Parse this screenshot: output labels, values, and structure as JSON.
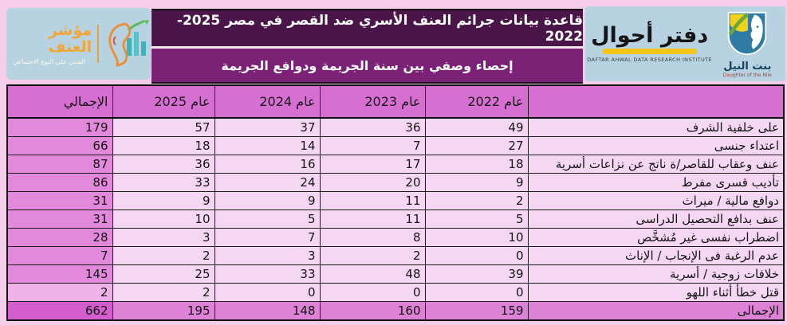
{
  "header": {
    "title": "قاعدة بيانات جرائم العنف الأسري ضد القصر في مصر 2025-2022",
    "subtitle": "إحصاء وصفي بين سنة الجريمة ودوافع الجريمة"
  },
  "logos": {
    "violence_index": {
      "title": "مؤشر العنف",
      "subtitle": "المبني على النوع الاجتماعي"
    },
    "daftar_ahwal": {
      "title": "دفتر أحوال",
      "caption": "DAFTAR AHWAL DATA RESEARCH INSTITUTE"
    },
    "bint_elnil": {
      "title": "بنت النيل",
      "caption": "Daughter of the Nile"
    }
  },
  "colors": {
    "band_dark": "#4a1548",
    "band_purple": "#7b2277",
    "header_row": "#d76fd3",
    "data_cell": "#f6d7f3",
    "total_column": "#e289dc",
    "total_row": "#de82d8",
    "grand_total": "#d45ecd",
    "page_background": "#f6cde8",
    "logo_background": "#b7d3e2"
  },
  "chart_data": {
    "type": "table",
    "title": "قاعدة بيانات جرائم العنف الأسري ضد القصر في مصر 2025-2022",
    "subtitle": "إحصاء وصفي بين سنة الجريمة ودوافع الجريمة",
    "columns": [
      "",
      "عام 2022",
      "عام 2023",
      "عام 2024",
      "عام 2025",
      "الإجمالي"
    ],
    "rows": [
      [
        "على خلفية الشرف",
        49,
        36,
        37,
        57,
        179
      ],
      [
        "اعتداء جنسى",
        27,
        7,
        14,
        18,
        66
      ],
      [
        "عنف وعقاب للقاصر/ة ناتج عن نزاعات أسرية",
        18,
        17,
        16,
        36,
        87
      ],
      [
        "تأديب قسرى مفرط",
        9,
        20,
        24,
        33,
        86
      ],
      [
        "دوافع مالية / ميراث",
        2,
        11,
        9,
        9,
        31
      ],
      [
        "عنف بدافع التحصيل الدراسى",
        5,
        11,
        5,
        10,
        31
      ],
      [
        "اضطراب نفسى غير مُشخَّص",
        10,
        8,
        7,
        3,
        28
      ],
      [
        "عدم الرغبة فى الإنجاب / الإناث",
        0,
        2,
        3,
        2,
        7
      ],
      [
        "خلافات زوجية / أسرية",
        39,
        48,
        33,
        25,
        145
      ],
      [
        "قتل خطأ أثناء اللهو",
        0,
        0,
        0,
        2,
        2
      ]
    ],
    "totals": [
      "الإجمالى",
      159,
      160,
      148,
      195,
      662
    ]
  }
}
